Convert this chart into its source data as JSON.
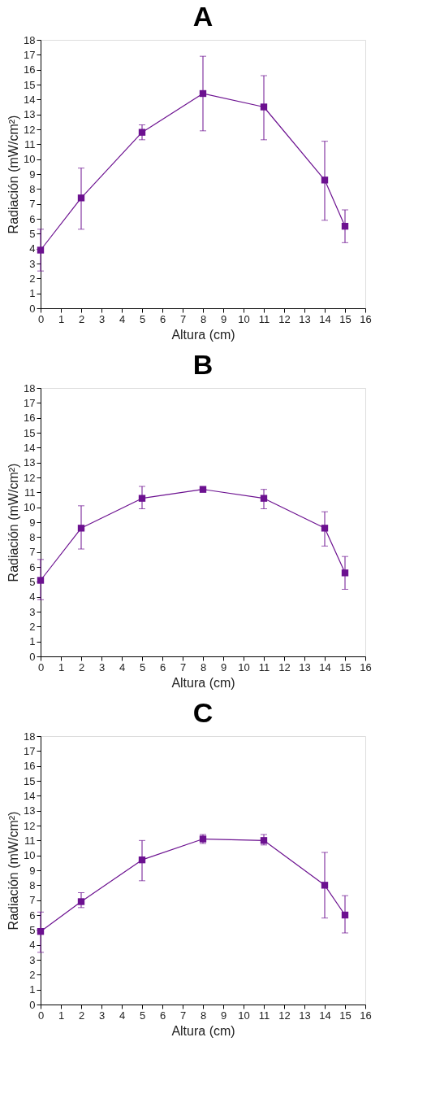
{
  "chart_data": [
    {
      "type": "line",
      "title": "A",
      "xlabel": "Altura (cm)",
      "ylabel": "Radiación (mW/cm²)",
      "x": [
        0,
        2,
        5,
        8,
        11,
        14,
        15
      ],
      "xlim": [
        0,
        16
      ],
      "xticks": [
        0,
        1,
        2,
        3,
        4,
        5,
        6,
        7,
        8,
        9,
        10,
        11,
        12,
        13,
        14,
        15,
        16
      ],
      "ylim": [
        0,
        18
      ],
      "yticks": [
        0,
        1,
        2,
        3,
        4,
        5,
        6,
        7,
        8,
        9,
        10,
        11,
        12,
        13,
        14,
        15,
        16,
        17,
        18
      ],
      "marker": "square",
      "grid": false,
      "series": [
        {
          "color": "#6c1190",
          "values": [
            3.9,
            7.4,
            11.8,
            14.4,
            13.5,
            8.6,
            5.5
          ],
          "errors": [
            [
              2.5,
              5.3
            ],
            [
              5.3,
              9.4
            ],
            [
              11.3,
              12.3
            ],
            [
              11.9,
              16.9
            ],
            [
              11.3,
              15.6
            ],
            [
              5.9,
              11.2
            ],
            [
              4.4,
              6.6
            ]
          ]
        }
      ]
    },
    {
      "type": "line",
      "title": "B",
      "xlabel": "Altura (cm)",
      "ylabel": "Radiación (mW/cm²)",
      "x": [
        0,
        2,
        5,
        8,
        11,
        14,
        15
      ],
      "xlim": [
        0,
        16
      ],
      "xticks": [
        0,
        1,
        2,
        3,
        4,
        5,
        6,
        7,
        8,
        9,
        10,
        11,
        12,
        13,
        14,
        15,
        16
      ],
      "ylim": [
        0,
        18
      ],
      "yticks": [
        0,
        1,
        2,
        3,
        4,
        5,
        6,
        7,
        8,
        9,
        10,
        11,
        12,
        13,
        14,
        15,
        16,
        17,
        18
      ],
      "marker": "square",
      "grid": false,
      "series": [
        {
          "color": "#6c1190",
          "values": [
            5.1,
            8.6,
            10.6,
            11.2,
            10.6,
            8.6,
            5.6
          ],
          "errors": [
            [
              3.8,
              6.5
            ],
            [
              7.2,
              10.1
            ],
            [
              9.9,
              11.4
            ],
            null,
            [
              9.9,
              11.2
            ],
            [
              7.4,
              9.7
            ],
            [
              4.5,
              6.7
            ]
          ]
        }
      ]
    },
    {
      "type": "line",
      "title": "C",
      "xlabel": "Altura (cm)",
      "ylabel": "Radiación (mW/cm²)",
      "x": [
        0,
        2,
        5,
        8,
        11,
        14,
        15
      ],
      "xlim": [
        0,
        16
      ],
      "xticks": [
        0,
        1,
        2,
        3,
        4,
        5,
        6,
        7,
        8,
        9,
        10,
        11,
        12,
        13,
        14,
        15,
        16
      ],
      "ylim": [
        0,
        18
      ],
      "yticks": [
        0,
        1,
        2,
        3,
        4,
        5,
        6,
        7,
        8,
        9,
        10,
        11,
        12,
        13,
        14,
        15,
        16,
        17,
        18
      ],
      "marker": "square",
      "grid": false,
      "series": [
        {
          "color": "#6c1190",
          "values": [
            4.9,
            6.9,
            9.7,
            11.1,
            11.0,
            8.0,
            6.0
          ],
          "errors": [
            [
              3.5,
              6.2
            ],
            [
              6.5,
              7.5
            ],
            [
              8.3,
              11.0
            ],
            [
              10.8,
              11.4
            ],
            [
              10.7,
              11.4
            ],
            [
              5.8,
              10.2
            ],
            [
              4.8,
              7.3
            ]
          ]
        }
      ]
    }
  ]
}
